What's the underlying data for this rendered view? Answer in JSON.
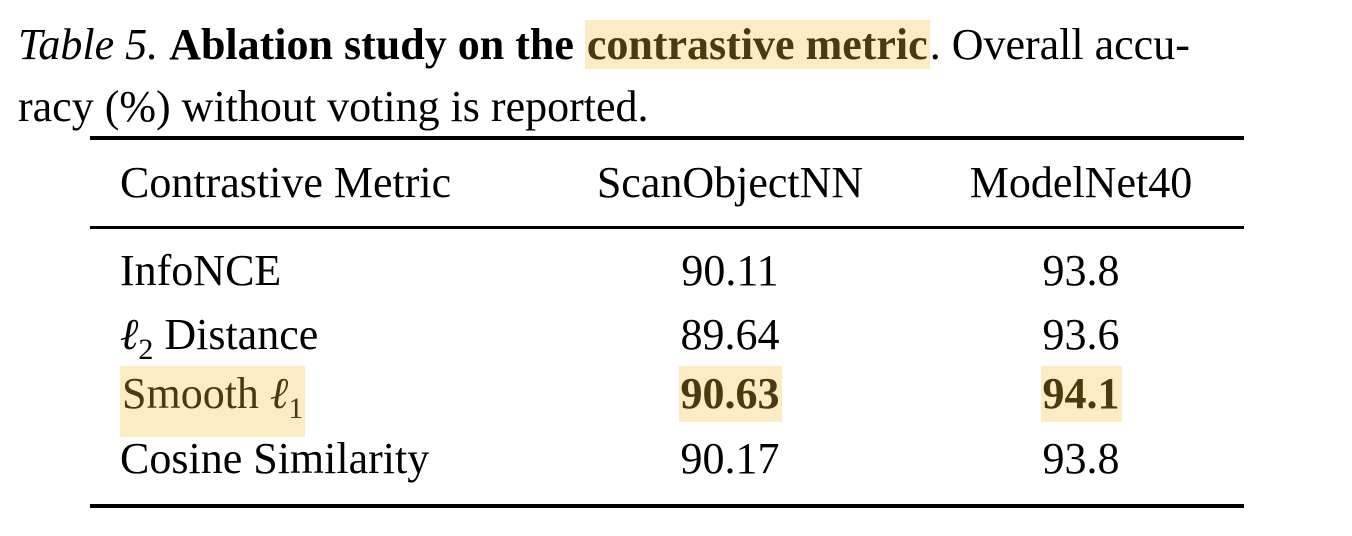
{
  "caption": {
    "label": "Table 5.",
    "bold_title": "Ablation study on the",
    "highlight": "contrastive metric",
    "rest_line1": ". Overall accu-",
    "rest_line2": "racy (%) without voting is reported."
  },
  "table": {
    "headers": [
      "Contrastive Metric",
      "ScanObjectNN",
      "ModelNet40"
    ],
    "rows": [
      {
        "metric_text": "InfoNCE",
        "scanobjectnn": "90.11",
        "modelnet40": "93.8"
      },
      {
        "metric_prefix": "ℓ",
        "metric_sub": "2",
        "metric_suffix": " Distance",
        "scanobjectnn": "89.64",
        "modelnet40": "93.6"
      },
      {
        "metric_prefix": "Smooth ",
        "metric_ell": "ℓ",
        "metric_sub": "1",
        "scanobjectnn": "90.63",
        "modelnet40": "94.1"
      },
      {
        "metric_text": "Cosine Similarity",
        "scanobjectnn": "90.17",
        "modelnet40": "93.8"
      }
    ]
  },
  "colors": {
    "highlight_bg": "#fdebc4",
    "highlight_text": "#4a3a10"
  }
}
